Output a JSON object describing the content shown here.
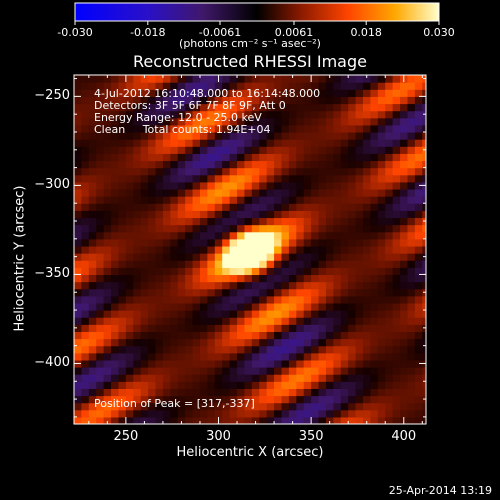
{
  "chart_data": {
    "type": "heatmap",
    "title": "Reconstructed RHESSI Image",
    "xlabel": "Heliocentric X (arcsec)",
    "ylabel": "Heliocentric Y (arcsec)",
    "xlim": [
      222,
      412
    ],
    "ylim": [
      -434,
      -238
    ],
    "x_ticks": [
      250,
      300,
      350,
      400
    ],
    "y_ticks": [
      -250,
      -300,
      -350,
      -400
    ],
    "colorbar": {
      "min": -0.03,
      "max": 0.03,
      "ticks": [
        "-0.030",
        "-0.018",
        "-0.0061",
        "0.0061",
        "0.018",
        "0.030"
      ],
      "tick_values": [
        -0.03,
        -0.018,
        -0.0061,
        0.0061,
        0.018,
        0.03
      ],
      "unit_label": "(photons cm⁻² s⁻¹ asec⁻²)",
      "colormap": [
        "#0000ff",
        "#4a1aa8",
        "#000000",
        "#c02a00",
        "#ff8c00",
        "#ffffc8"
      ]
    },
    "annotations": {
      "time": "4-Jul-2012 16:10:48.000 to 16:14:48.000",
      "detectors": "Detectors: 3F 5F 6F 7F 8F 9F, Att 0",
      "energy": "Energy Range: 12.0 - 25.0 keV",
      "clean": "Clean     Total counts: 1.94E+04",
      "peak": "Position of Peak = [317,-337]"
    },
    "peak": {
      "x": 317,
      "y": -337
    }
  },
  "footer": {
    "timestamp": "25-Apr-2014 13:19"
  }
}
